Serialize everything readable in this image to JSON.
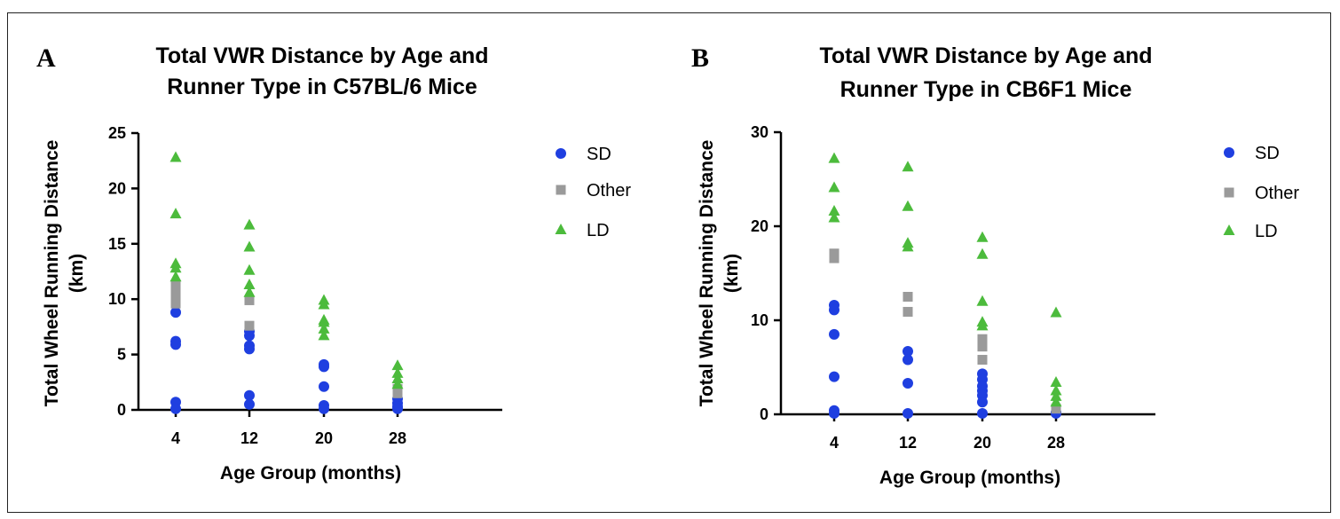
{
  "chart_data": [
    {
      "type": "scatter",
      "panel_label": "A",
      "title": [
        "Total VWR Distance by Age and",
        "Runner Type in C57BL/6 Mice"
      ],
      "xlabel": "Age Group (months)",
      "ylabel": [
        "Total Wheel Running Distance",
        "(km)"
      ],
      "categories": [
        "4",
        "12",
        "20",
        "28"
      ],
      "ylim": [
        0,
        25
      ],
      "yticks": [
        0,
        5,
        10,
        15,
        20,
        25
      ],
      "legend_position": "right",
      "series": [
        {
          "name": "SD",
          "marker": "circle",
          "color": "#1f3fe0",
          "points": [
            {
              "x": "4",
              "y": 8.8
            },
            {
              "x": "4",
              "y": 6.2
            },
            {
              "x": "4",
              "y": 5.9
            },
            {
              "x": "4",
              "y": 0.7
            },
            {
              "x": "4",
              "y": 0.1
            },
            {
              "x": "12",
              "y": 7.1
            },
            {
              "x": "12",
              "y": 6.7
            },
            {
              "x": "12",
              "y": 5.8
            },
            {
              "x": "12",
              "y": 5.5
            },
            {
              "x": "12",
              "y": 1.3
            },
            {
              "x": "12",
              "y": 0.5
            },
            {
              "x": "20",
              "y": 4.1
            },
            {
              "x": "20",
              "y": 3.9
            },
            {
              "x": "20",
              "y": 2.1
            },
            {
              "x": "20",
              "y": 0.4
            },
            {
              "x": "20",
              "y": 0.1
            },
            {
              "x": "28",
              "y": 1.0
            },
            {
              "x": "28",
              "y": 0.6
            },
            {
              "x": "28",
              "y": 0.3
            },
            {
              "x": "28",
              "y": 0.1
            }
          ]
        },
        {
          "name": "Other",
          "marker": "square",
          "color": "#9a9a9a",
          "points": [
            {
              "x": "4",
              "y": 11.3
            },
            {
              "x": "4",
              "y": 10.8
            },
            {
              "x": "4",
              "y": 10.2
            },
            {
              "x": "4",
              "y": 9.6
            },
            {
              "x": "12",
              "y": 9.9
            },
            {
              "x": "12",
              "y": 7.6
            },
            {
              "x": "28",
              "y": 1.9
            },
            {
              "x": "28",
              "y": 1.5
            }
          ]
        },
        {
          "name": "LD",
          "marker": "triangle",
          "color": "#4cbb3c",
          "points": [
            {
              "x": "4",
              "y": 22.8
            },
            {
              "x": "4",
              "y": 17.7
            },
            {
              "x": "4",
              "y": 13.2
            },
            {
              "x": "4",
              "y": 12.8
            },
            {
              "x": "4",
              "y": 12.0
            },
            {
              "x": "12",
              "y": 16.7
            },
            {
              "x": "12",
              "y": 14.7
            },
            {
              "x": "12",
              "y": 12.6
            },
            {
              "x": "12",
              "y": 11.3
            },
            {
              "x": "12",
              "y": 10.6
            },
            {
              "x": "20",
              "y": 9.9
            },
            {
              "x": "20",
              "y": 9.5
            },
            {
              "x": "20",
              "y": 8.1
            },
            {
              "x": "20",
              "y": 7.9
            },
            {
              "x": "20",
              "y": 7.3
            },
            {
              "x": "20",
              "y": 6.7
            },
            {
              "x": "28",
              "y": 4.0
            },
            {
              "x": "28",
              "y": 3.3
            },
            {
              "x": "28",
              "y": 2.8
            },
            {
              "x": "28",
              "y": 2.3
            }
          ]
        }
      ]
    },
    {
      "type": "scatter",
      "panel_label": "B",
      "title": [
        "Total VWR Distance by Age and",
        "Runner Type in CB6F1 Mice"
      ],
      "xlabel": "Age Group (months)",
      "ylabel": [
        "Total Wheel Running Distance",
        "(km)"
      ],
      "categories": [
        "4",
        "12",
        "20",
        "28"
      ],
      "ylim": [
        0,
        30
      ],
      "yticks": [
        0,
        10,
        20,
        30
      ],
      "legend_position": "right",
      "series": [
        {
          "name": "SD",
          "marker": "circle",
          "color": "#1f3fe0",
          "points": [
            {
              "x": "4",
              "y": 11.6
            },
            {
              "x": "4",
              "y": 11.1
            },
            {
              "x": "4",
              "y": 8.5
            },
            {
              "x": "4",
              "y": 4.0
            },
            {
              "x": "4",
              "y": 0.4
            },
            {
              "x": "4",
              "y": 0.1
            },
            {
              "x": "12",
              "y": 6.7
            },
            {
              "x": "12",
              "y": 5.8
            },
            {
              "x": "12",
              "y": 3.3
            },
            {
              "x": "12",
              "y": 0.1
            },
            {
              "x": "20",
              "y": 4.3
            },
            {
              "x": "20",
              "y": 3.7
            },
            {
              "x": "20",
              "y": 3.0
            },
            {
              "x": "20",
              "y": 2.5
            },
            {
              "x": "20",
              "y": 2.0
            },
            {
              "x": "20",
              "y": 1.3
            },
            {
              "x": "20",
              "y": 0.1
            },
            {
              "x": "28",
              "y": 0.2
            },
            {
              "x": "28",
              "y": 0.1
            }
          ]
        },
        {
          "name": "Other",
          "marker": "square",
          "color": "#9a9a9a",
          "points": [
            {
              "x": "4",
              "y": 17.1
            },
            {
              "x": "4",
              "y": 16.6
            },
            {
              "x": "12",
              "y": 12.5
            },
            {
              "x": "12",
              "y": 10.9
            },
            {
              "x": "20",
              "y": 8.0
            },
            {
              "x": "20",
              "y": 7.2
            },
            {
              "x": "20",
              "y": 5.8
            },
            {
              "x": "28",
              "y": 0.6
            }
          ]
        },
        {
          "name": "LD",
          "marker": "triangle",
          "color": "#4cbb3c",
          "points": [
            {
              "x": "4",
              "y": 27.2
            },
            {
              "x": "4",
              "y": 24.1
            },
            {
              "x": "4",
              "y": 21.6
            },
            {
              "x": "4",
              "y": 20.9
            },
            {
              "x": "12",
              "y": 26.3
            },
            {
              "x": "12",
              "y": 22.1
            },
            {
              "x": "12",
              "y": 18.2
            },
            {
              "x": "12",
              "y": 17.8
            },
            {
              "x": "20",
              "y": 18.8
            },
            {
              "x": "20",
              "y": 17.0
            },
            {
              "x": "20",
              "y": 12.0
            },
            {
              "x": "20",
              "y": 9.8
            },
            {
              "x": "20",
              "y": 9.4
            },
            {
              "x": "28",
              "y": 10.8
            },
            {
              "x": "28",
              "y": 3.4
            },
            {
              "x": "28",
              "y": 2.5
            },
            {
              "x": "28",
              "y": 1.9
            },
            {
              "x": "28",
              "y": 1.3
            }
          ]
        }
      ]
    }
  ]
}
